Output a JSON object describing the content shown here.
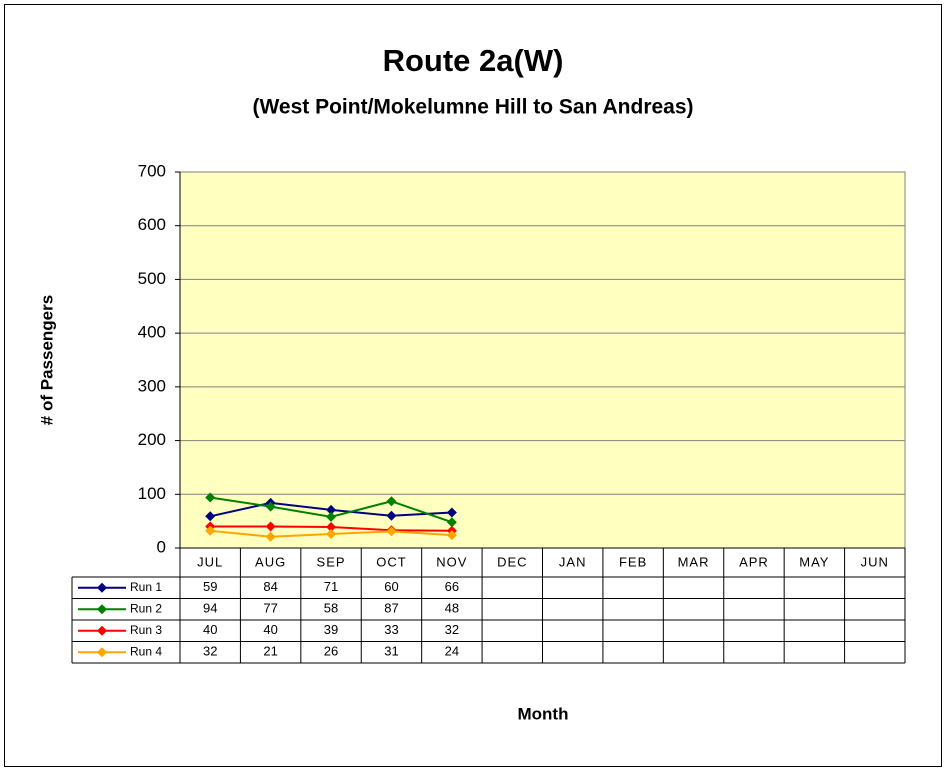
{
  "chart_data": {
    "type": "line",
    "title": "Route 2a(W)",
    "subtitle": "(West Point/Mokelumne Hill to San Andreas)",
    "y_label": "# of Passengers",
    "x_label": "Month",
    "categories": [
      "JUL",
      "AUG",
      "SEP",
      "OCT",
      "NOV",
      "DEC",
      "JAN",
      "FEB",
      "MAR",
      "APR",
      "MAY",
      "JUN"
    ],
    "series": [
      {
        "name": "Run 1",
        "color": "#000080",
        "values": [
          59,
          84,
          71,
          60,
          66,
          null,
          null,
          null,
          null,
          null,
          null,
          null
        ]
      },
      {
        "name": "Run 2",
        "color": "#008000",
        "values": [
          94,
          77,
          58,
          87,
          48,
          null,
          null,
          null,
          null,
          null,
          null,
          null
        ]
      },
      {
        "name": "Run 3",
        "color": "#ff0000",
        "values": [
          40,
          40,
          39,
          33,
          32,
          null,
          null,
          null,
          null,
          null,
          null,
          null
        ]
      },
      {
        "name": "Run 4",
        "color": "#ffa500",
        "values": [
          32,
          21,
          26,
          31,
          24,
          null,
          null,
          null,
          null,
          null,
          null,
          null
        ]
      }
    ],
    "ylim": [
      0,
      700
    ],
    "yticks": [
      0,
      100,
      200,
      300,
      400,
      500,
      600,
      700
    ],
    "grid": true,
    "plot_background": "#ffffc0",
    "data_table": true
  }
}
